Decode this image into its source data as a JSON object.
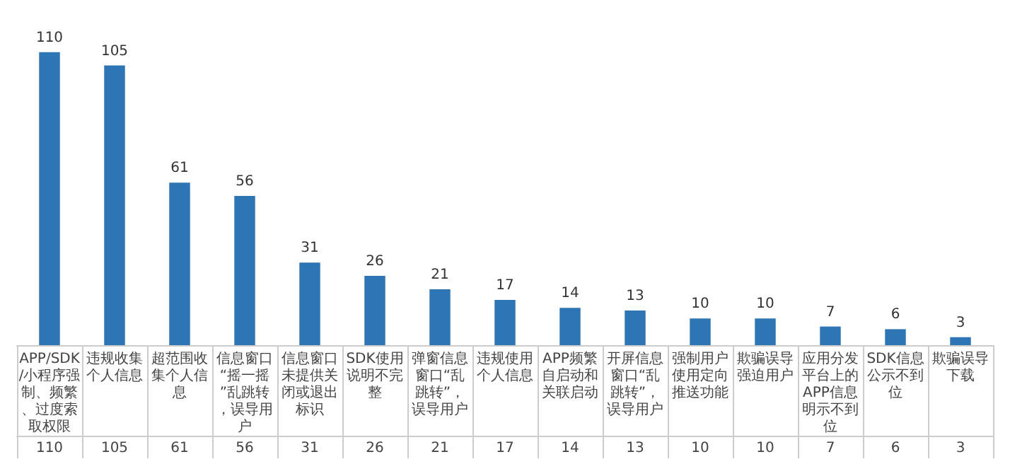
{
  "chart_data": {
    "type": "bar",
    "categories": [
      "APP/SDK/小程序强制、频繁、过度索取权限",
      "违规收集个人信息",
      "超范围收集个人信息",
      "信息窗口“摇一摇”乱跳转，误导用户",
      "信息窗口未提供关闭或退出标识",
      "SDK使用说明不完整",
      "弹窗信息窗口“乱跳转”，误导用户",
      "违规使用个人信息",
      "APP频繁自启动和关联启动",
      "开屏信息窗口“乱跳转”，误导用户",
      "强制用户使用定向推送功能",
      "欺骗误导强迫用户",
      "应用分发平台上的APP信息明示不到位",
      "SDK信息公示不到位",
      "欺骗误导下载"
    ],
    "values": [
      110,
      105,
      61,
      56,
      31,
      26,
      21,
      17,
      14,
      13,
      10,
      10,
      7,
      6,
      3
    ],
    "value_labels": [
      "110",
      "105",
      "61",
      "56",
      "31",
      "26",
      "21",
      "17",
      "14",
      "13",
      "10",
      "10",
      "7",
      "6",
      "3"
    ],
    "color": "#2e75b6",
    "data_labels": true,
    "grid": false
  }
}
